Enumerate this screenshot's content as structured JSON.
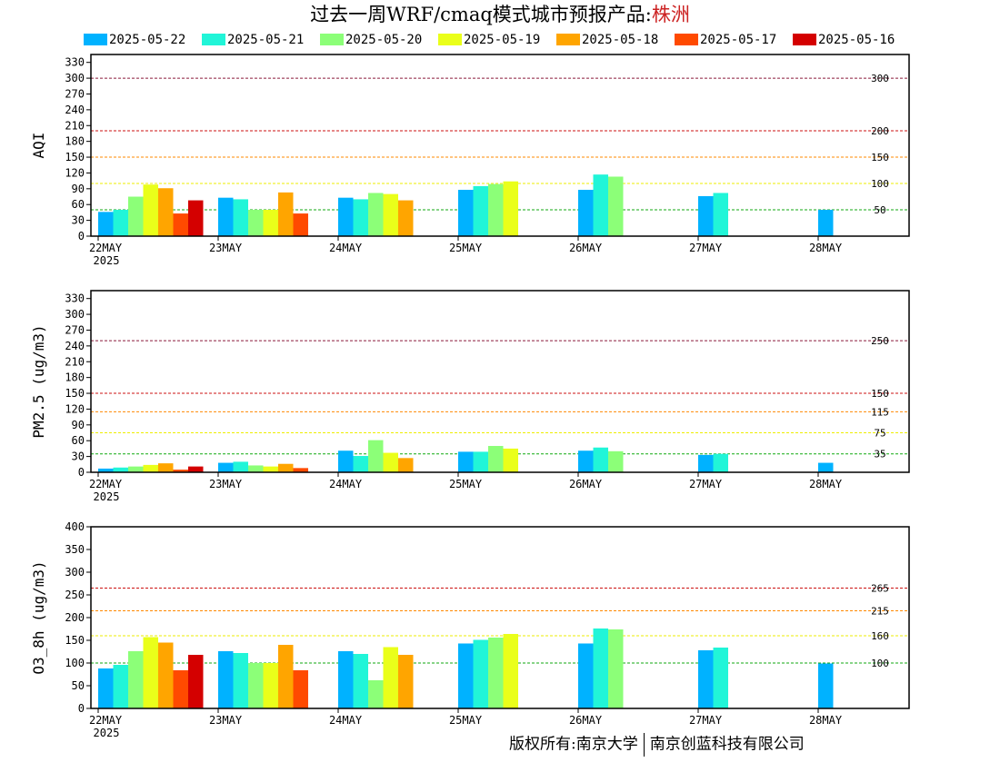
{
  "title": {
    "main": "过去一周WRF/cmaq模式城市预报产品:",
    "city": "株洲"
  },
  "legend": [
    {
      "label": "2025-05-22",
      "color": "#00b2ff"
    },
    {
      "label": "2025-05-21",
      "color": "#21f5d8"
    },
    {
      "label": "2025-05-20",
      "color": "#8cff78"
    },
    {
      "label": "2025-05-19",
      "color": "#eaff1a"
    },
    {
      "label": "2025-05-18",
      "color": "#ffa500"
    },
    {
      "label": "2025-05-17",
      "color": "#ff4a00"
    },
    {
      "label": "2025-05-16",
      "color": "#d40000"
    }
  ],
  "chart_data": [
    {
      "type": "bar",
      "ylabel": "AQI",
      "ylim": [
        0,
        345
      ],
      "yticks": [
        0,
        30,
        60,
        90,
        120,
        150,
        180,
        210,
        240,
        270,
        300,
        330
      ],
      "categories": [
        "22MAY",
        "23MAY",
        "24MAY",
        "25MAY",
        "26MAY",
        "27MAY",
        "28MAY"
      ],
      "year_label": "2025",
      "thresholds": [
        {
          "value": 300,
          "label": "300",
          "color": "#8b1a3a"
        },
        {
          "value": 200,
          "label": "200",
          "color": "#cc1111"
        },
        {
          "value": 150,
          "label": "150",
          "color": "#ff8800"
        },
        {
          "value": 100,
          "label": "100",
          "color": "#eeee00"
        },
        {
          "value": 50,
          "label": "50",
          "color": "#11aa11"
        }
      ],
      "series": [
        {
          "name": "2025-05-22",
          "values": [
            46,
            73,
            73,
            88,
            88,
            76,
            50
          ]
        },
        {
          "name": "2025-05-21",
          "values": [
            50,
            70,
            70,
            95,
            117,
            82,
            null
          ]
        },
        {
          "name": "2025-05-20",
          "values": [
            75,
            50,
            82,
            99,
            113,
            null,
            null
          ]
        },
        {
          "name": "2025-05-19",
          "values": [
            98,
            50,
            80,
            104,
            null,
            null,
            null
          ]
        },
        {
          "name": "2025-05-18",
          "values": [
            91,
            83,
            68,
            null,
            null,
            null,
            null
          ]
        },
        {
          "name": "2025-05-17",
          "values": [
            43,
            43,
            null,
            null,
            null,
            null,
            null
          ]
        },
        {
          "name": "2025-05-16",
          "values": [
            68,
            null,
            null,
            null,
            null,
            null,
            null
          ]
        }
      ]
    },
    {
      "type": "bar",
      "ylabel": "PM2.5 (ug/m3)",
      "ylim": [
        0,
        345
      ],
      "yticks": [
        0,
        30,
        60,
        90,
        120,
        150,
        180,
        210,
        240,
        270,
        300,
        330
      ],
      "categories": [
        "22MAY",
        "23MAY",
        "24MAY",
        "25MAY",
        "26MAY",
        "27MAY",
        "28MAY"
      ],
      "year_label": "2025",
      "thresholds": [
        {
          "value": 250,
          "label": "250",
          "color": "#8b1a3a"
        },
        {
          "value": 150,
          "label": "150",
          "color": "#cc1111"
        },
        {
          "value": 115,
          "label": "115",
          "color": "#ff8800"
        },
        {
          "value": 75,
          "label": "75",
          "color": "#eeee00"
        },
        {
          "value": 35,
          "label": "35",
          "color": "#11aa11"
        }
      ],
      "series": [
        {
          "name": "2025-05-22",
          "values": [
            7,
            18,
            41,
            39,
            41,
            33,
            18
          ]
        },
        {
          "name": "2025-05-21",
          "values": [
            9,
            20,
            31,
            39,
            47,
            35,
            null
          ]
        },
        {
          "name": "2025-05-20",
          "values": [
            11,
            13,
            61,
            50,
            40,
            null,
            null
          ]
        },
        {
          "name": "2025-05-19",
          "values": [
            14,
            11,
            37,
            45,
            null,
            null,
            null
          ]
        },
        {
          "name": "2025-05-18",
          "values": [
            17,
            16,
            27,
            null,
            null,
            null,
            null
          ]
        },
        {
          "name": "2025-05-17",
          "values": [
            5,
            8,
            null,
            null,
            null,
            null,
            null
          ]
        },
        {
          "name": "2025-05-16",
          "values": [
            11,
            null,
            null,
            null,
            null,
            null,
            null
          ]
        }
      ]
    },
    {
      "type": "bar",
      "ylabel": "O3_8h (ug/m3)",
      "ylim": [
        0,
        400
      ],
      "yticks": [
        0,
        50,
        100,
        150,
        200,
        250,
        300,
        350,
        400
      ],
      "categories": [
        "22MAY",
        "23MAY",
        "24MAY",
        "25MAY",
        "26MAY",
        "27MAY",
        "28MAY"
      ],
      "year_label": "2025",
      "thresholds": [
        {
          "value": 265,
          "label": "265",
          "color": "#cc1111"
        },
        {
          "value": 215,
          "label": "215",
          "color": "#ff8800"
        },
        {
          "value": 160,
          "label": "160",
          "color": "#eeee00"
        },
        {
          "value": 100,
          "label": "100",
          "color": "#11aa11"
        }
      ],
      "series": [
        {
          "name": "2025-05-22",
          "values": [
            88,
            126,
            126,
            143,
            143,
            128,
            99
          ]
        },
        {
          "name": "2025-05-21",
          "values": [
            96,
            122,
            120,
            151,
            176,
            134,
            null
          ]
        },
        {
          "name": "2025-05-20",
          "values": [
            126,
            100,
            62,
            156,
            174,
            null,
            null
          ]
        },
        {
          "name": "2025-05-19",
          "values": [
            157,
            100,
            135,
            164,
            null,
            null,
            null
          ]
        },
        {
          "name": "2025-05-18",
          "values": [
            145,
            140,
            118,
            null,
            null,
            null,
            null
          ]
        },
        {
          "name": "2025-05-17",
          "values": [
            84,
            84,
            null,
            null,
            null,
            null,
            null
          ]
        },
        {
          "name": "2025-05-16",
          "values": [
            118,
            null,
            null,
            null,
            null,
            null,
            null
          ]
        }
      ]
    }
  ],
  "footer": {
    "left": "版权所有:南京大学",
    "right": "南京创蓝科技有限公司"
  }
}
